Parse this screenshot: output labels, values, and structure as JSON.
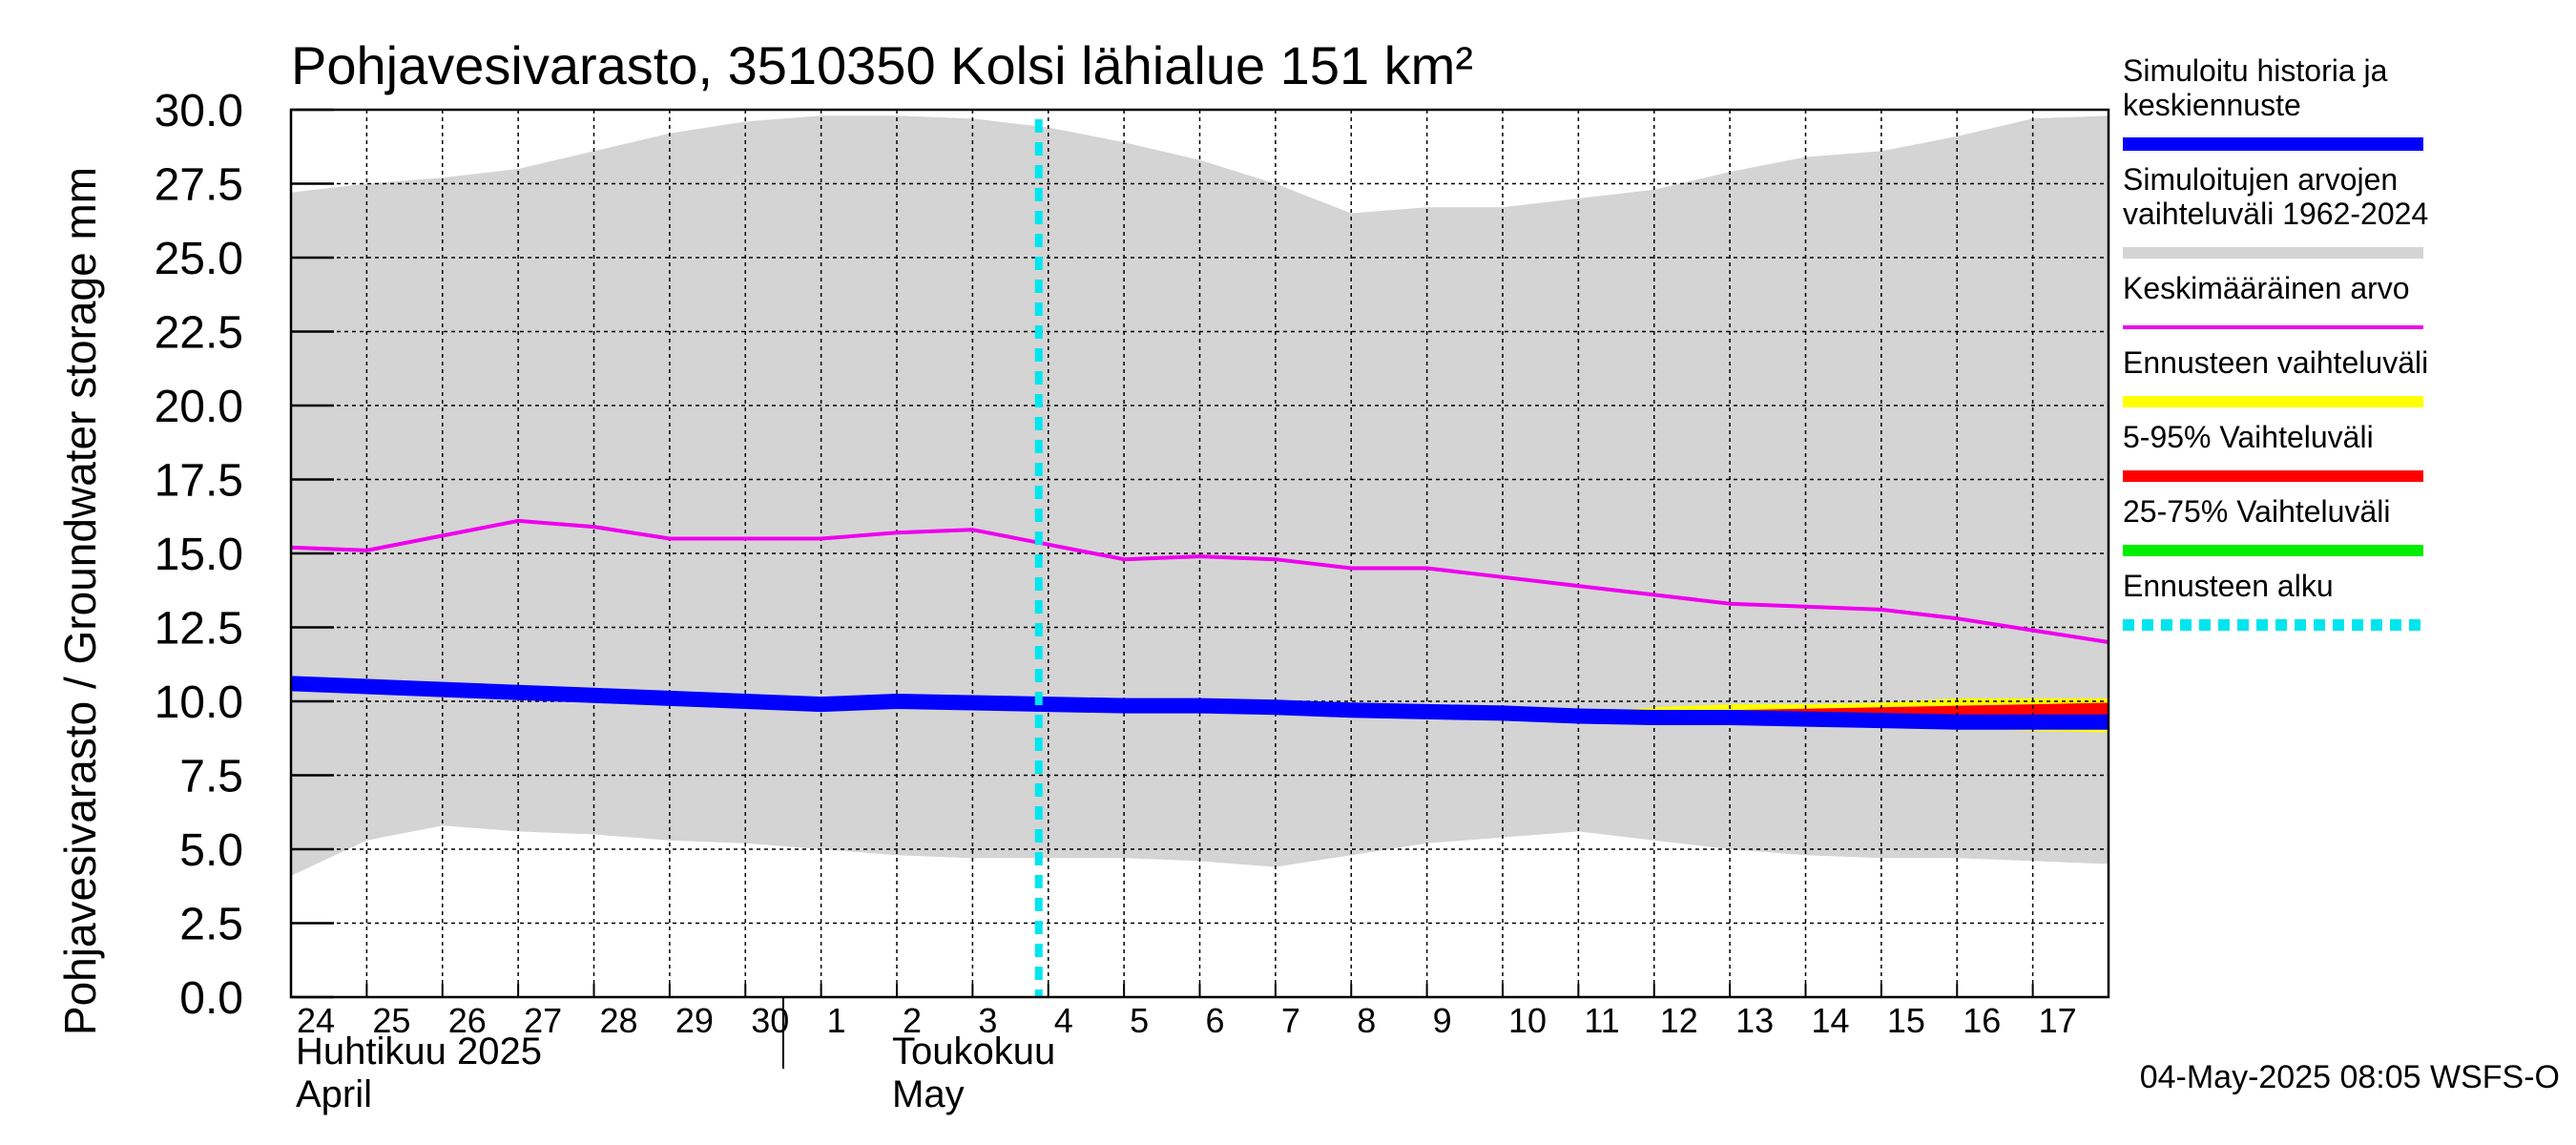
{
  "chart_data": {
    "type": "line",
    "title": "Pohjavesivarasto, 3510350 Kolsi lähialue 151 km²",
    "ylabel": "Pohjavesivarasto / Groundwater storage   mm",
    "ylim": [
      0,
      30
    ],
    "yticks": [
      "0.0",
      "2.5",
      "5.0",
      "7.5",
      "10.0",
      "12.5",
      "15.0",
      "17.5",
      "20.0",
      "22.5",
      "25.0",
      "27.5",
      "30.0"
    ],
    "xticks": [
      "24",
      "25",
      "26",
      "27",
      "28",
      "29",
      "30",
      "1",
      "2",
      "3",
      "4",
      "5",
      "6",
      "7",
      "8",
      "9",
      "10",
      "11",
      "12",
      "13",
      "14",
      "15",
      "16",
      "17"
    ],
    "month_labels": [
      {
        "fi": "Huhtikuu  2025",
        "en": "April"
      },
      {
        "fi": "Toukokuu",
        "en": "May"
      }
    ],
    "x": [
      "2025-04-24",
      "2025-04-25",
      "2025-04-26",
      "2025-04-27",
      "2025-04-28",
      "2025-04-29",
      "2025-04-30",
      "2025-05-01",
      "2025-05-02",
      "2025-05-03",
      "2025-05-04",
      "2025-05-05",
      "2025-05-06",
      "2025-05-07",
      "2025-05-08",
      "2025-05-09",
      "2025-05-10",
      "2025-05-11",
      "2025-05-12",
      "2025-05-13",
      "2025-05-14",
      "2025-05-15",
      "2025-05-16",
      "2025-05-17",
      "2025-05-18"
    ],
    "grid": true,
    "legend_position": "right",
    "forecast_start": "2025-05-04",
    "series": [
      {
        "name": "Simuloitujen arvojen vaihteluväli 1962-2024",
        "kind": "band",
        "color": "#d4d4d4",
        "upper": [
          27.2,
          27.5,
          27.7,
          28.0,
          28.6,
          29.2,
          29.6,
          29.8,
          29.8,
          29.7,
          29.4,
          28.9,
          28.3,
          27.5,
          26.5,
          26.7,
          26.7,
          27.0,
          27.3,
          27.9,
          28.4,
          28.6,
          29.1,
          29.7,
          29.8
        ],
        "lower": [
          4.1,
          5.3,
          5.8,
          5.6,
          5.5,
          5.3,
          5.2,
          5.0,
          4.8,
          4.7,
          4.7,
          4.7,
          4.6,
          4.4,
          4.8,
          5.2,
          5.4,
          5.6,
          5.3,
          5.0,
          4.8,
          4.7,
          4.7,
          4.6,
          4.5
        ]
      },
      {
        "name": "Ennusteen vaihteluväli",
        "kind": "band",
        "color": "#ffff00",
        "x_start": "2025-05-11",
        "upper": [
          9.6,
          9.8,
          9.9,
          9.9,
          9.95,
          10.1,
          10.1,
          10.1
        ],
        "lower": [
          9.4,
          9.35,
          9.3,
          9.25,
          9.2,
          9.1,
          9.0,
          8.95
        ]
      },
      {
        "name": "5-95% Vaihteluväli",
        "kind": "band",
        "color": "#ff0000",
        "x_start": "2025-05-11",
        "upper": [
          9.5,
          9.65,
          9.7,
          9.75,
          9.8,
          9.85,
          9.9,
          9.95
        ],
        "lower": [
          9.4,
          9.35,
          9.3,
          9.25,
          9.2,
          9.15,
          9.1,
          9.05
        ]
      },
      {
        "name": "25-75% Vaihteluväli",
        "kind": "band",
        "color": "#00ee00",
        "x_start": "2025-05-11",
        "upper": [
          9.48,
          9.45,
          9.42,
          9.38,
          9.35,
          9.33,
          9.3,
          9.28
        ],
        "lower": [
          9.45,
          9.42,
          9.39,
          9.36,
          9.33,
          9.3,
          9.27,
          9.25
        ]
      },
      {
        "name": "Keskimääräinen arvo",
        "kind": "line",
        "color": "#ee00ee",
        "values": [
          15.2,
          15.1,
          15.6,
          16.1,
          15.9,
          15.5,
          15.5,
          15.5,
          15.7,
          15.8,
          15.3,
          14.8,
          14.9,
          14.8,
          14.5,
          14.5,
          14.2,
          13.9,
          13.6,
          13.3,
          13.2,
          13.1,
          12.8,
          12.4,
          12.0
        ]
      },
      {
        "name": "Simuloitu historia ja keskiennuste",
        "kind": "line",
        "color": "#0000ff",
        "values": [
          10.6,
          10.5,
          10.4,
          10.3,
          10.2,
          10.1,
          10.0,
          9.9,
          10.0,
          9.95,
          9.9,
          9.85,
          9.85,
          9.8,
          9.7,
          9.65,
          9.6,
          9.5,
          9.45,
          9.45,
          9.4,
          9.35,
          9.3,
          9.3,
          9.3
        ]
      }
    ]
  },
  "legend": [
    {
      "label": "Simuloitu historia ja keskiennuste",
      "color": "#0000ff",
      "style": "solid"
    },
    {
      "label": "Simuloitujen arvojen vaihteluväli 1962-2024",
      "color": "#d4d4d4",
      "style": "solid"
    },
    {
      "label": "Keskimääräinen arvo",
      "color": "#ee00ee",
      "style": "solid"
    },
    {
      "label": "Ennusteen vaihteluväli",
      "color": "#ffff00",
      "style": "solid"
    },
    {
      "label": "5-95% Vaihteluväli",
      "color": "#ff0000",
      "style": "solid"
    },
    {
      "label": "25-75% Vaihteluväli",
      "color": "#00ee00",
      "style": "solid"
    },
    {
      "label": "Ennusteen alku",
      "color": "#00e5ee",
      "style": "dashed"
    }
  ],
  "footer": "04-May-2025 08:05 WSFS-O"
}
